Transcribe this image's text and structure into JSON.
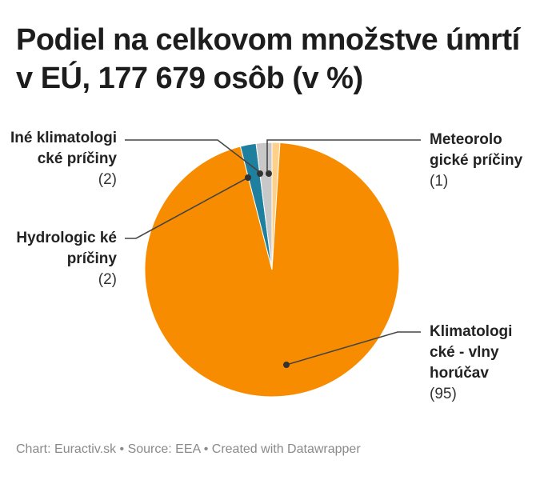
{
  "title": "Podiel na celkovom množstve úmrtí v EÚ, 177 679 osôb (v %)",
  "footer": "Chart: Euractiv.sk • Source: EEA • Created with Datawrapper",
  "labels": {
    "ine": {
      "name": "Iné klimatologi cké príčiny",
      "value": "(2)"
    },
    "hydro": {
      "name": "Hydrologic ké príčiny",
      "value": "(2)"
    },
    "meteo": {
      "name": "Meteorolo gické príčiny",
      "value": "(1)"
    },
    "heat": {
      "name": "Klimatologi cké - vlny horúčav",
      "value": "(95)"
    }
  },
  "chart_data": {
    "type": "pie",
    "title": "Podiel na celkovom množstve úmrtí v EÚ, 177 679 osôb (v %)",
    "categories": [
      "Meteorologické príčiny",
      "Klimatologické - vlny horúčav",
      "Hydrologické príčiny",
      "Iné klimatologické príčiny"
    ],
    "values": [
      1,
      95,
      2,
      2
    ],
    "colors": [
      "#ffd08a",
      "#f78c00",
      "#1f7f9e",
      "#c8c8c8"
    ],
    "slice_order_clockwise_from_top": [
      "Meteorologické príčiny",
      "Klimatologické - vlny horúčav",
      "Hydrologické príčiny",
      "Iné klimatologické príčiny"
    ],
    "source": "EEA",
    "credit": "Euractiv.sk"
  }
}
